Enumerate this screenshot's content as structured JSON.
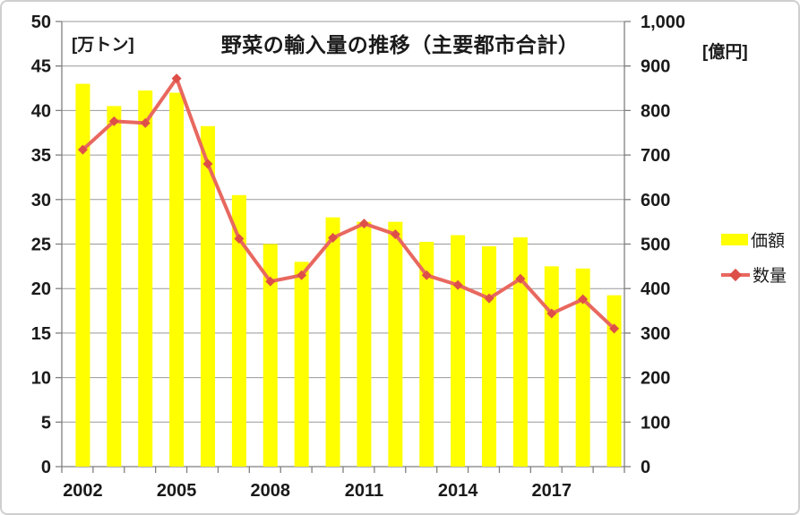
{
  "chart_data": {
    "type": "bar",
    "subtype": "bar+line combo, dual axis",
    "title": "野菜の輸入量の推移（主要都市合計）",
    "categories": [
      "2002",
      "2003",
      "2004",
      "2005",
      "2006",
      "2007",
      "2008",
      "2009",
      "2010",
      "2011",
      "2012",
      "2013",
      "2014",
      "2015",
      "2016",
      "2017",
      "2018",
      "2019"
    ],
    "x_axis": {
      "labeled_ticks": [
        "2002",
        "2005",
        "2008",
        "2011",
        "2014",
        "2017"
      ]
    },
    "left_axis": {
      "unit_label": "[万トン]",
      "min": 0,
      "max": 50,
      "step": 5
    },
    "right_axis": {
      "unit_label": "[億円]",
      "min": 0,
      "max": 1000,
      "step": 100,
      "max_tick_label": "1,000"
    },
    "grid": true,
    "legend_position": "right",
    "series": [
      {
        "name": "価額",
        "type": "bar",
        "axis": "right",
        "color": "#ffff00",
        "values": [
          860,
          810,
          845,
          840,
          765,
          610,
          500,
          460,
          560,
          550,
          550,
          505,
          520,
          495,
          515,
          450,
          445,
          385
        ]
      },
      {
        "name": "数量",
        "type": "line",
        "axis": "left",
        "color": "#e8685f",
        "marker": "diamond",
        "marker_color": "#dd4f48",
        "values": [
          35.6,
          38.8,
          38.6,
          43.6,
          34.0,
          25.6,
          20.8,
          21.5,
          25.7,
          27.3,
          26.1,
          21.5,
          20.4,
          18.9,
          21.1,
          17.2,
          18.8,
          15.5
        ]
      }
    ],
    "colors": {
      "grid": "#999999",
      "axis": "#7f7f7f",
      "text": "#1a1a1a"
    }
  }
}
